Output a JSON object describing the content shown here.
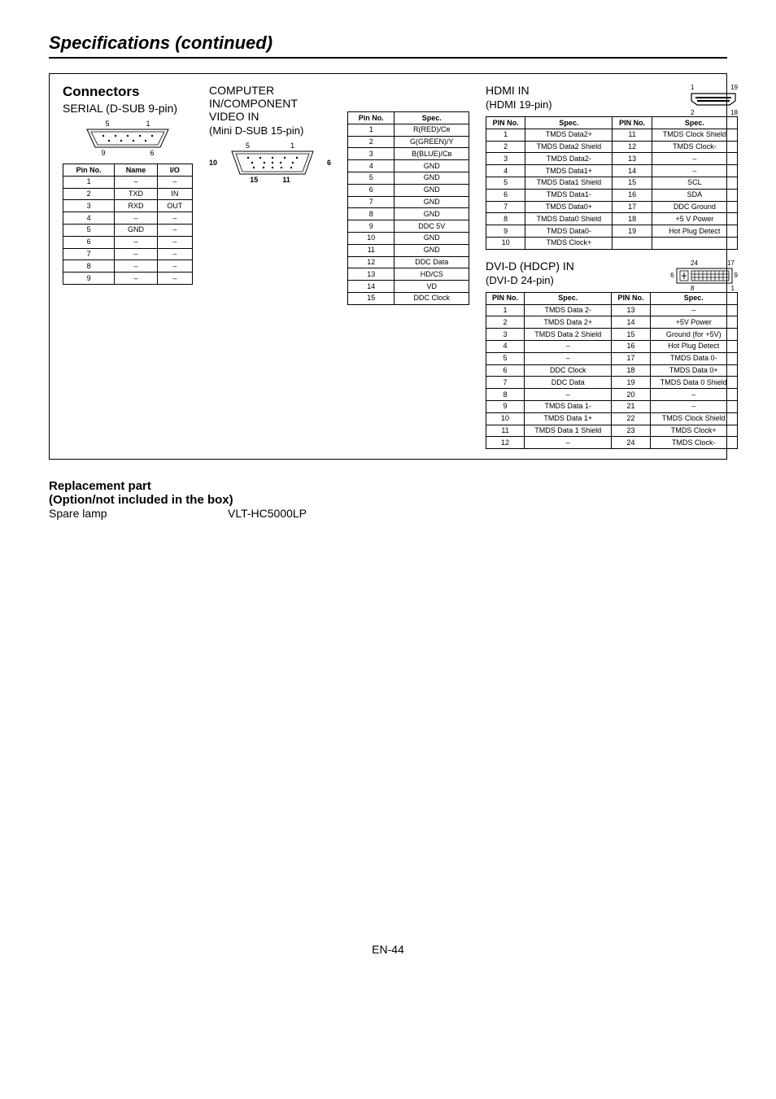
{
  "pageTitle": "Specifications (continued)",
  "connectorsLabel": "Connectors",
  "footer": "EN-44",
  "replacement": {
    "line1": "Replacement part",
    "line2": "(Option/not included in the box)",
    "key": "Spare lamp",
    "val": "VLT-HC5000LP"
  },
  "serial": {
    "title": "SERIAL (D-SUB 9-pin)",
    "diagram": {
      "topL": "5",
      "topR": "1",
      "botL": "9",
      "botR": "6"
    },
    "headers": [
      "Pin No.",
      "Name",
      "I/O"
    ],
    "rows": [
      [
        "1",
        "–",
        "–"
      ],
      [
        "2",
        "TXD",
        "IN"
      ],
      [
        "3",
        "RXD",
        "OUT"
      ],
      [
        "4",
        "–",
        "–"
      ],
      [
        "5",
        "GND",
        "–"
      ],
      [
        "6",
        "–",
        "–"
      ],
      [
        "7",
        "–",
        "–"
      ],
      [
        "8",
        "–",
        "–"
      ],
      [
        "9",
        "–",
        "–"
      ]
    ]
  },
  "computer": {
    "header": "COMPUTER IN/COMPONENT VIDEO IN",
    "sub": "(Mini D-SUB 15-pin)",
    "diagram": {
      "topL": "5",
      "topR": "1",
      "midL": "10",
      "midR": "6",
      "botL": "15",
      "botR": "11"
    },
    "headers": [
      "Pin No.",
      "Spec."
    ],
    "rows": [
      [
        "1",
        "R(RED)/Cʀ"
      ],
      [
        "2",
        "G(GREEN)/Y"
      ],
      [
        "3",
        "B(BLUE)/Cʙ"
      ],
      [
        "4",
        "GND"
      ],
      [
        "5",
        "GND"
      ],
      [
        "6",
        "GND"
      ],
      [
        "7",
        "GND"
      ],
      [
        "8",
        "GND"
      ],
      [
        "9",
        "DDC 5V"
      ],
      [
        "10",
        "GND"
      ],
      [
        "11",
        "GND"
      ],
      [
        "12",
        "DDC Data"
      ],
      [
        "13",
        "HD/CS"
      ],
      [
        "14",
        "VD"
      ],
      [
        "15",
        "DDC Clock"
      ]
    ]
  },
  "hdmi": {
    "title": "HDMI IN",
    "sub": "(HDMI 19-pin)",
    "diagram": {
      "topL": "1",
      "topR": "19",
      "botL": "2",
      "botR": "18"
    },
    "headers": [
      "PIN No.",
      "Spec.",
      "PIN No.",
      "Spec."
    ],
    "rows": [
      [
        "1",
        "TMDS Data2+",
        "11",
        "TMDS Clock Shield"
      ],
      [
        "2",
        "TMDS Data2 Shield",
        "12",
        "TMDS Clock-"
      ],
      [
        "3",
        "TMDS Data2-",
        "13",
        "–"
      ],
      [
        "4",
        "TMDS Data1+",
        "14",
        "–"
      ],
      [
        "5",
        "TMDS Data1 Shield",
        "15",
        "SCL"
      ],
      [
        "6",
        "TMDS Data1-",
        "16",
        "SDA"
      ],
      [
        "7",
        "TMDS Data0+",
        "17",
        "DDC Ground"
      ],
      [
        "8",
        "TMDS Data0 Shield",
        "18",
        "+5 V Power"
      ],
      [
        "9",
        "TMDS Data0-",
        "19",
        "Hot Plug Detect"
      ],
      [
        "10",
        "TMDS Clock+",
        "",
        ""
      ]
    ]
  },
  "dvi": {
    "title": "DVI-D (HDCP) IN",
    "sub": "(DVI-D 24-pin)",
    "diagram": {
      "topL": "24",
      "topR": "17",
      "midL": "6",
      "midR": "9",
      "botL": "8",
      "botR": "1"
    },
    "headers": [
      "PIN No.",
      "Spec.",
      "PIN No.",
      "Spec."
    ],
    "rows": [
      [
        "1",
        "TMDS Data 2-",
        "13",
        "–"
      ],
      [
        "2",
        "TMDS Data 2+",
        "14",
        "+5V Power"
      ],
      [
        "3",
        "TMDS Data 2 Shield",
        "15",
        "Ground (for +5V)"
      ],
      [
        "4",
        "–",
        "16",
        "Hot Plug Detect"
      ],
      [
        "5",
        "–",
        "17",
        "TMDS Data 0-"
      ],
      [
        "6",
        "DDC Clock",
        "18",
        "TMDS Data 0+"
      ],
      [
        "7",
        "DDC Data",
        "19",
        "TMDS Data 0 Shield"
      ],
      [
        "8",
        "–",
        "20",
        "–"
      ],
      [
        "9",
        "TMDS Data 1-",
        "21",
        "–"
      ],
      [
        "10",
        "TMDS Data 1+",
        "22",
        "TMDS Clock Shield"
      ],
      [
        "11",
        "TMDS Data 1 Shield",
        "23",
        "TMDS Clock+"
      ],
      [
        "12",
        "–",
        "24",
        "TMDS Clock-"
      ]
    ]
  }
}
